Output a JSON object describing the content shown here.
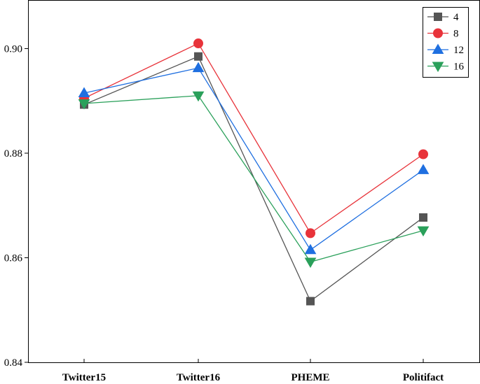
{
  "chart_data": {
    "type": "line",
    "categories": [
      "Twitter15",
      "Twitter16",
      "PHEME",
      "Politifact"
    ],
    "series": [
      {
        "name": "4",
        "values": [
          0.8893,
          0.8985,
          0.8517,
          0.8677
        ],
        "color": "#555555",
        "marker": "square"
      },
      {
        "name": "8",
        "values": [
          0.8905,
          0.901,
          0.8647,
          0.8798
        ],
        "color": "#e8333a",
        "marker": "circle"
      },
      {
        "name": "12",
        "values": [
          0.8915,
          0.8963,
          0.8615,
          0.8768
        ],
        "color": "#1f6fe0",
        "marker": "triangle-up"
      },
      {
        "name": "16",
        "values": [
          0.8895,
          0.891,
          0.8592,
          0.8652
        ],
        "color": "#2aa05a",
        "marker": "triangle-down"
      }
    ],
    "yticks": [
      "0.84",
      "0.86",
      "0.88",
      "0.90"
    ],
    "ylim": [
      0.84,
      0.9093
    ],
    "title": "",
    "xlabel": "",
    "ylabel": "",
    "legend_position": "top-right",
    "grid": false
  }
}
